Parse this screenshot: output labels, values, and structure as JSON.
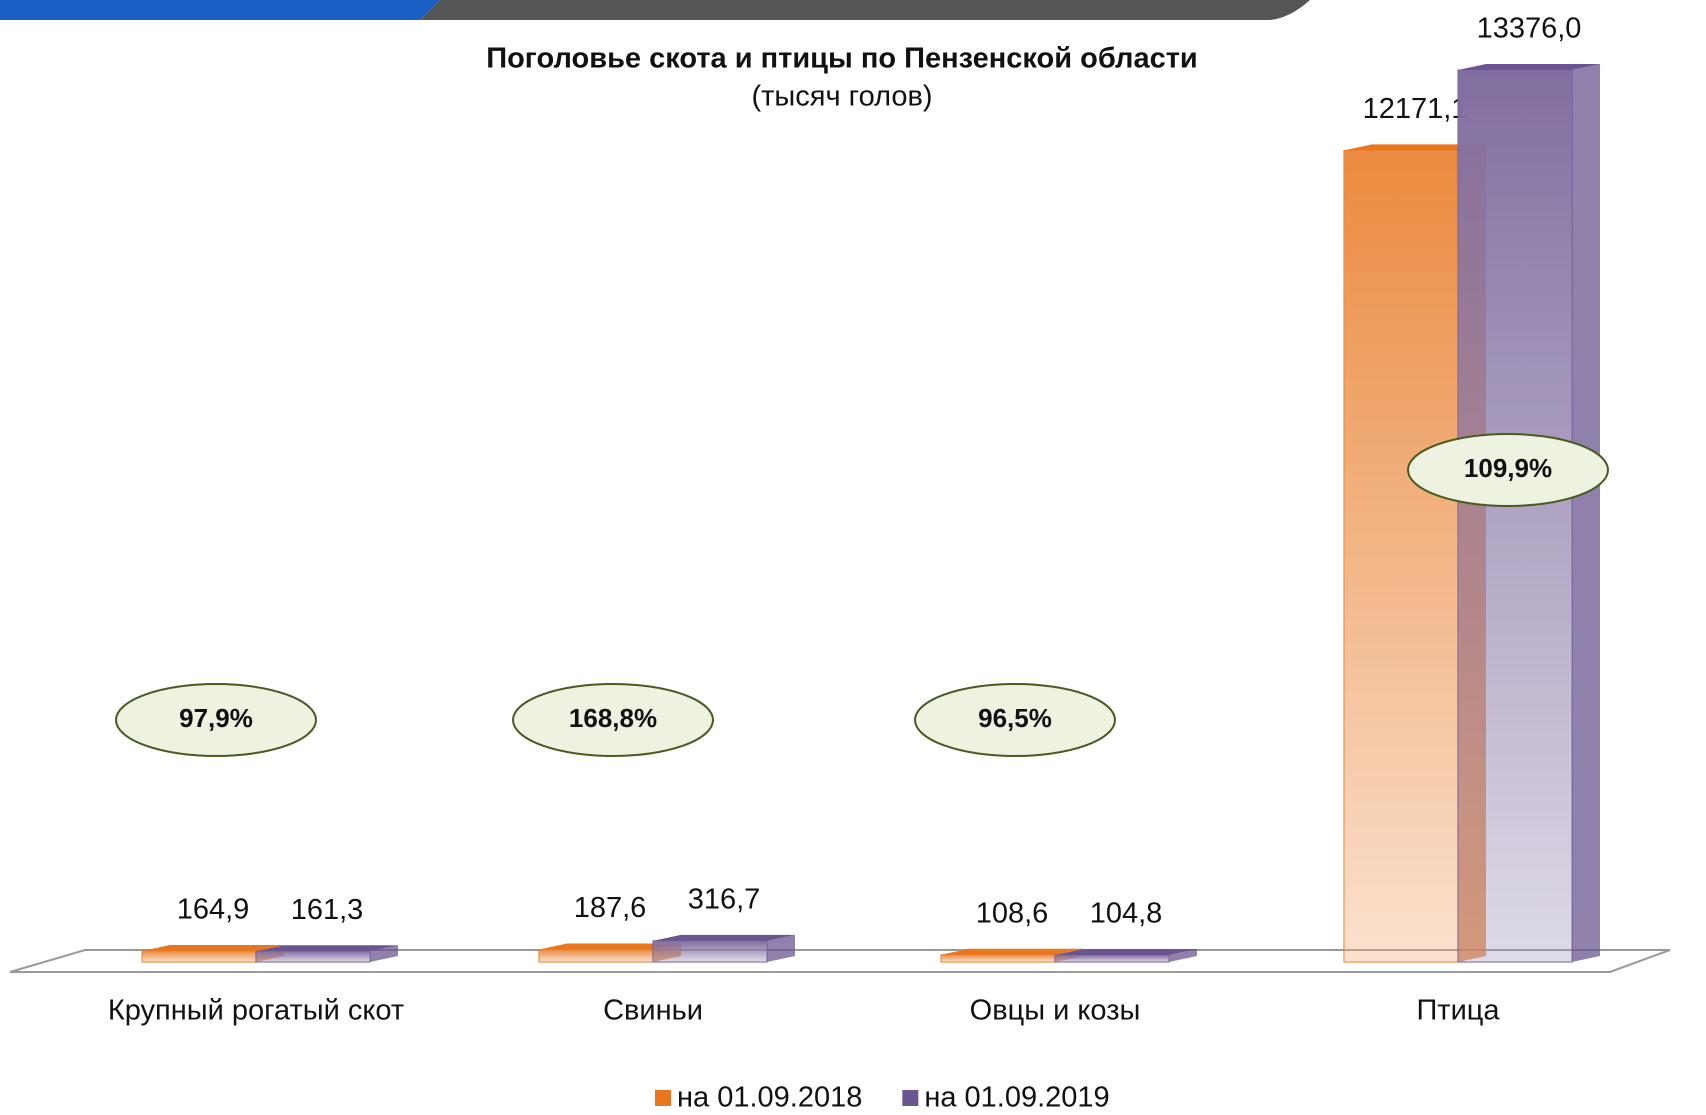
{
  "chart_data": {
    "type": "bar",
    "title": "Поголовье скота и птицы по Пензенской области",
    "subtitle": "(тысяч голов)",
    "categories": [
      "Крупный рогатый скот",
      "Свиньи",
      "Овцы и козы",
      "Птица"
    ],
    "series": [
      {
        "name": "на 01.09.2018",
        "color": "#e8761e",
        "values": [
          164.9,
          187.6,
          108.6,
          12171.1
        ],
        "value_labels": [
          "164,9",
          "187,6",
          "108,6",
          "12171,1"
        ]
      },
      {
        "name": "на 01.09.2019",
        "color": "#6b5590",
        "values": [
          161.3,
          316.7,
          104.8,
          13376.0
        ],
        "value_labels": [
          "161,3",
          "316,7",
          "104,8",
          "13376,0"
        ]
      }
    ],
    "annotations": [
      "97,9%",
      "168,8%",
      "96,5%",
      "109,9%"
    ],
    "legend": "bottom"
  }
}
